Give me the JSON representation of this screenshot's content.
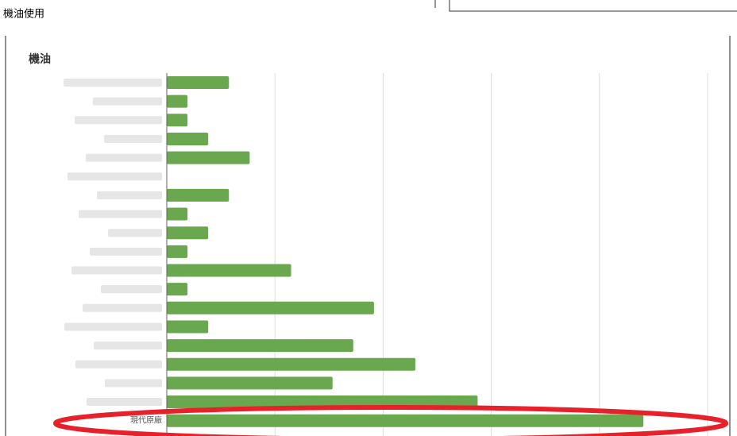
{
  "page_title": "機油使用",
  "chart_data": {
    "type": "hbar",
    "title": "機油",
    "categories": [
      null,
      null,
      null,
      null,
      null,
      null,
      null,
      null,
      null,
      null,
      null,
      null,
      null,
      null,
      null,
      null,
      null,
      null,
      "現代原廠"
    ],
    "values": [
      3,
      1,
      1,
      2,
      4,
      0,
      3,
      1,
      2,
      1,
      6,
      1,
      10,
      2,
      9,
      12,
      8,
      15,
      23
    ],
    "color": "#6aa84f",
    "xlim": [
      0,
      26.1
    ],
    "grid_divisions": 5
  }
}
